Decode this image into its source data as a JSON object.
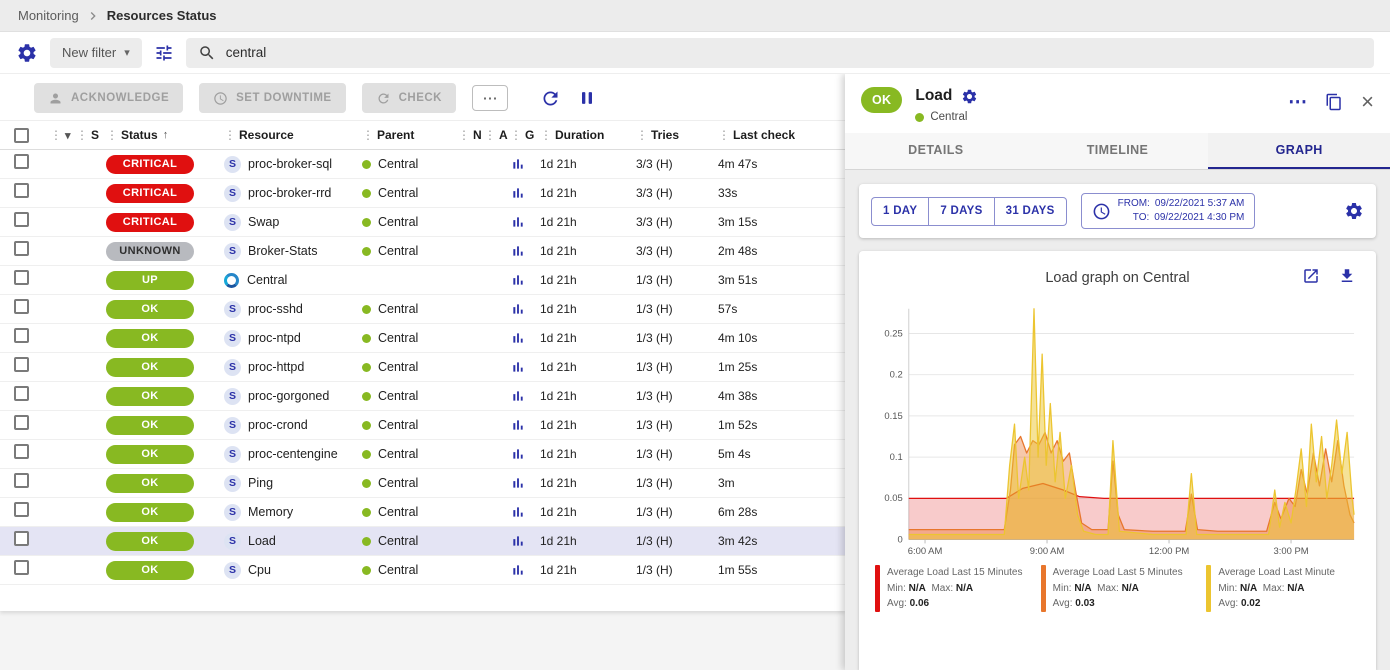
{
  "colors": {
    "accent": "#2b31a8",
    "ok_green": "#88b922",
    "critical_red": "#e01010",
    "unknown_gray": "#b8babf",
    "selected_row": "#e4e4f4"
  },
  "icons": {
    "drag": "⋮",
    "caret_down": "▾",
    "more": "⋯",
    "sort_asc": "↑",
    "close": "×"
  },
  "breadcrumb": {
    "section": "Monitoring",
    "page": "Resources Status"
  },
  "filter_bar": {
    "new_filter": "New filter",
    "search_value": "central"
  },
  "toolbar": {
    "acknowledge": "ACKNOWLEDGE",
    "set_downtime": "SET DOWNTIME",
    "check": "CHECK"
  },
  "table": {
    "headers": {
      "s": "S",
      "status": "Status",
      "resource": "Resource",
      "parent": "Parent",
      "n": "N",
      "a": "A",
      "g": "G",
      "duration": "Duration",
      "tries": "Tries",
      "last_check": "Last check"
    },
    "status_styles": {
      "CRITICAL": {
        "bg": "#e01010",
        "fg": "#ffffff"
      },
      "UNKNOWN": {
        "bg": "#b8babf",
        "fg": "#2f2f2f"
      },
      "UP": {
        "bg": "#88b922",
        "fg": "#ffffff"
      },
      "OK": {
        "bg": "#88b922",
        "fg": "#ffffff"
      }
    },
    "rows": [
      {
        "status": "CRITICAL",
        "type": "service",
        "resource": "proc-broker-sql",
        "parent": "Central",
        "duration": "1d 21h",
        "tries": "3/3 (H)",
        "last_check": "4m 47s",
        "selected": false
      },
      {
        "status": "CRITICAL",
        "type": "service",
        "resource": "proc-broker-rrd",
        "parent": "Central",
        "duration": "1d 21h",
        "tries": "3/3 (H)",
        "last_check": "33s",
        "selected": false
      },
      {
        "status": "CRITICAL",
        "type": "service",
        "resource": "Swap",
        "parent": "Central",
        "duration": "1d 21h",
        "tries": "3/3 (H)",
        "last_check": "3m 15s",
        "selected": false
      },
      {
        "status": "UNKNOWN",
        "type": "service",
        "resource": "Broker-Stats",
        "parent": "Central",
        "duration": "1d 21h",
        "tries": "3/3 (H)",
        "last_check": "2m 48s",
        "selected": false
      },
      {
        "status": "UP",
        "type": "host",
        "resource": "Central",
        "parent": "",
        "duration": "1d 21h",
        "tries": "1/3 (H)",
        "last_check": "3m 51s",
        "selected": false
      },
      {
        "status": "OK",
        "type": "service",
        "resource": "proc-sshd",
        "parent": "Central",
        "duration": "1d 21h",
        "tries": "1/3 (H)",
        "last_check": "57s",
        "selected": false
      },
      {
        "status": "OK",
        "type": "service",
        "resource": "proc-ntpd",
        "parent": "Central",
        "duration": "1d 21h",
        "tries": "1/3 (H)",
        "last_check": "4m 10s",
        "selected": false
      },
      {
        "status": "OK",
        "type": "service",
        "resource": "proc-httpd",
        "parent": "Central",
        "duration": "1d 21h",
        "tries": "1/3 (H)",
        "last_check": "1m 25s",
        "selected": false
      },
      {
        "status": "OK",
        "type": "service",
        "resource": "proc-gorgoned",
        "parent": "Central",
        "duration": "1d 21h",
        "tries": "1/3 (H)",
        "last_check": "4m 38s",
        "selected": false
      },
      {
        "status": "OK",
        "type": "service",
        "resource": "proc-crond",
        "parent": "Central",
        "duration": "1d 21h",
        "tries": "1/3 (H)",
        "last_check": "1m 52s",
        "selected": false
      },
      {
        "status": "OK",
        "type": "service",
        "resource": "proc-centengine",
        "parent": "Central",
        "duration": "1d 21h",
        "tries": "1/3 (H)",
        "last_check": "5m 4s",
        "selected": false
      },
      {
        "status": "OK",
        "type": "service",
        "resource": "Ping",
        "parent": "Central",
        "duration": "1d 21h",
        "tries": "1/3 (H)",
        "last_check": "3m",
        "selected": false
      },
      {
        "status": "OK",
        "type": "service",
        "resource": "Memory",
        "parent": "Central",
        "duration": "1d 21h",
        "tries": "1/3 (H)",
        "last_check": "6m 28s",
        "selected": false
      },
      {
        "status": "OK",
        "type": "service",
        "resource": "Load",
        "parent": "Central",
        "duration": "1d 21h",
        "tries": "1/3 (H)",
        "last_check": "3m 42s",
        "selected": true
      },
      {
        "status": "OK",
        "type": "service",
        "resource": "Cpu",
        "parent": "Central",
        "duration": "1d 21h",
        "tries": "1/3 (H)",
        "last_check": "1m 55s",
        "selected": false
      }
    ]
  },
  "panel": {
    "status": "OK",
    "title": "Load",
    "parent": "Central",
    "tabs": [
      {
        "label": "DETAILS",
        "active": false
      },
      {
        "label": "TIMELINE",
        "active": false
      },
      {
        "label": "GRAPH",
        "active": true
      }
    ],
    "ranges": [
      "1 DAY",
      "7 DAYS",
      "31 DAYS"
    ],
    "from_label": "FROM:",
    "from_value": "09/22/2021 5:37 AM",
    "to_label": "TO:",
    "to_value": "09/22/2021 4:30 PM",
    "graph_title": "Load graph on Central",
    "legend_labels": {
      "min": "Min:",
      "max": "Max:",
      "avg": "Avg:"
    },
    "legend": [
      {
        "name": "Average Load Last 15 Minutes",
        "color": "#e01010",
        "min": "N/A",
        "max": "N/A",
        "avg": "0.06"
      },
      {
        "name": "Average Load Last 5 Minutes",
        "color": "#e8762c",
        "min": "N/A",
        "max": "N/A",
        "avg": "0.03"
      },
      {
        "name": "Average Load Last Minute",
        "color": "#ecc530",
        "min": "N/A",
        "max": "N/A",
        "avg": "0.02"
      }
    ]
  },
  "chart_data": {
    "type": "area",
    "title": "Load graph on Central",
    "x_unit": "hour_of_day",
    "xlim": [
      5.6,
      16.55
    ],
    "ylim": [
      0,
      0.28
    ],
    "yticks": [
      0,
      0.05,
      0.1,
      0.15,
      0.2,
      0.25
    ],
    "xticks": [
      {
        "v": 6,
        "label": "6:00 AM"
      },
      {
        "v": 9,
        "label": "9:00 AM"
      },
      {
        "v": 12,
        "label": "12:00 PM"
      },
      {
        "v": 15,
        "label": "3:00 PM"
      }
    ],
    "grid": true,
    "legend_position": "bottom",
    "series": [
      {
        "name": "Average Load Last 15 Minutes",
        "color": "#e01010",
        "fill": "rgba(224,16,16,0.22)",
        "avg": 0.06,
        "points": [
          [
            5.6,
            0.05
          ],
          [
            8.0,
            0.05
          ],
          [
            8.4,
            0.062
          ],
          [
            8.9,
            0.068
          ],
          [
            9.4,
            0.06
          ],
          [
            9.8,
            0.052
          ],
          [
            10.4,
            0.05
          ],
          [
            16.55,
            0.05
          ]
        ]
      },
      {
        "name": "Average Load Last 5 Minutes",
        "color": "#e8762c",
        "fill": "rgba(232,118,44,0.40)",
        "avg": 0.03,
        "points": [
          [
            5.6,
            0.012
          ],
          [
            7.95,
            0.012
          ],
          [
            8.1,
            0.06
          ],
          [
            8.2,
            0.115
          ],
          [
            8.35,
            0.125
          ],
          [
            8.5,
            0.105
          ],
          [
            8.65,
            0.12
          ],
          [
            8.8,
            0.115
          ],
          [
            8.95,
            0.13
          ],
          [
            9.1,
            0.105
          ],
          [
            9.25,
            0.12
          ],
          [
            9.4,
            0.095
          ],
          [
            9.55,
            0.105
          ],
          [
            9.7,
            0.06
          ],
          [
            9.85,
            0.02
          ],
          [
            10.1,
            0.012
          ],
          [
            10.5,
            0.012
          ],
          [
            10.62,
            0.095
          ],
          [
            10.75,
            0.03
          ],
          [
            10.9,
            0.012
          ],
          [
            11.6,
            0.01
          ],
          [
            12.4,
            0.01
          ],
          [
            12.55,
            0.055
          ],
          [
            12.7,
            0.012
          ],
          [
            13.2,
            0.01
          ],
          [
            14.4,
            0.01
          ],
          [
            14.6,
            0.045
          ],
          [
            14.75,
            0.025
          ],
          [
            14.95,
            0.05
          ],
          [
            15.1,
            0.04
          ],
          [
            15.25,
            0.085
          ],
          [
            15.4,
            0.055
          ],
          [
            15.55,
            0.105
          ],
          [
            15.7,
            0.065
          ],
          [
            15.85,
            0.11
          ],
          [
            16.0,
            0.07
          ],
          [
            16.15,
            0.12
          ],
          [
            16.3,
            0.065
          ],
          [
            16.45,
            0.03
          ],
          [
            16.55,
            0.02
          ]
        ]
      },
      {
        "name": "Average Load Last Minute",
        "color": "#ecc530",
        "fill": "rgba(236,197,48,0.50)",
        "avg": 0.02,
        "points": [
          [
            5.6,
            0.006
          ],
          [
            7.95,
            0.006
          ],
          [
            8.08,
            0.09
          ],
          [
            8.2,
            0.14
          ],
          [
            8.3,
            0.05
          ],
          [
            8.45,
            0.1
          ],
          [
            8.55,
            0.06
          ],
          [
            8.68,
            0.28
          ],
          [
            8.78,
            0.1
          ],
          [
            8.88,
            0.225
          ],
          [
            8.98,
            0.09
          ],
          [
            9.08,
            0.165
          ],
          [
            9.2,
            0.07
          ],
          [
            9.32,
            0.13
          ],
          [
            9.45,
            0.05
          ],
          [
            9.6,
            0.09
          ],
          [
            9.75,
            0.03
          ],
          [
            9.9,
            0.01
          ],
          [
            10.2,
            0.006
          ],
          [
            10.5,
            0.006
          ],
          [
            10.62,
            0.12
          ],
          [
            10.78,
            0.01
          ],
          [
            11.6,
            0.006
          ],
          [
            12.42,
            0.006
          ],
          [
            12.55,
            0.08
          ],
          [
            12.68,
            0.006
          ],
          [
            13.2,
            0.006
          ],
          [
            14.45,
            0.006
          ],
          [
            14.6,
            0.06
          ],
          [
            14.72,
            0.015
          ],
          [
            14.85,
            0.045
          ],
          [
            15.0,
            0.02
          ],
          [
            15.12,
            0.06
          ],
          [
            15.25,
            0.11
          ],
          [
            15.38,
            0.04
          ],
          [
            15.5,
            0.14
          ],
          [
            15.62,
            0.07
          ],
          [
            15.75,
            0.125
          ],
          [
            15.88,
            0.05
          ],
          [
            16.0,
            0.09
          ],
          [
            16.12,
            0.145
          ],
          [
            16.25,
            0.08
          ],
          [
            16.38,
            0.13
          ],
          [
            16.5,
            0.05
          ],
          [
            16.55,
            0.03
          ]
        ]
      }
    ]
  }
}
